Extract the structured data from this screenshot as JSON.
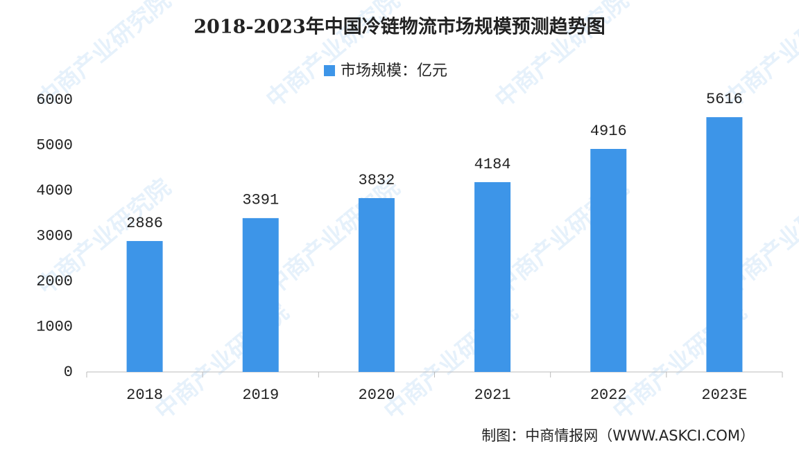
{
  "chart_data": {
    "type": "bar",
    "title": "2018-2023年中国冷链物流市场规模预测趋势图",
    "series": [
      {
        "name": "市场规模：亿元",
        "color": "#3d95e8",
        "values": [
          2886,
          3391,
          3832,
          4184,
          4916,
          5616
        ]
      }
    ],
    "categories": [
      "2018",
      "2019",
      "2020",
      "2021",
      "2022",
      "2023E"
    ],
    "ylim": [
      0,
      6000
    ],
    "yticks": [
      0,
      1000,
      2000,
      3000,
      4000,
      5000,
      6000
    ],
    "grid": false,
    "source": "制图：中商情报网（WWW.ASKCI.COM）",
    "watermark": "中商产业研究院"
  }
}
